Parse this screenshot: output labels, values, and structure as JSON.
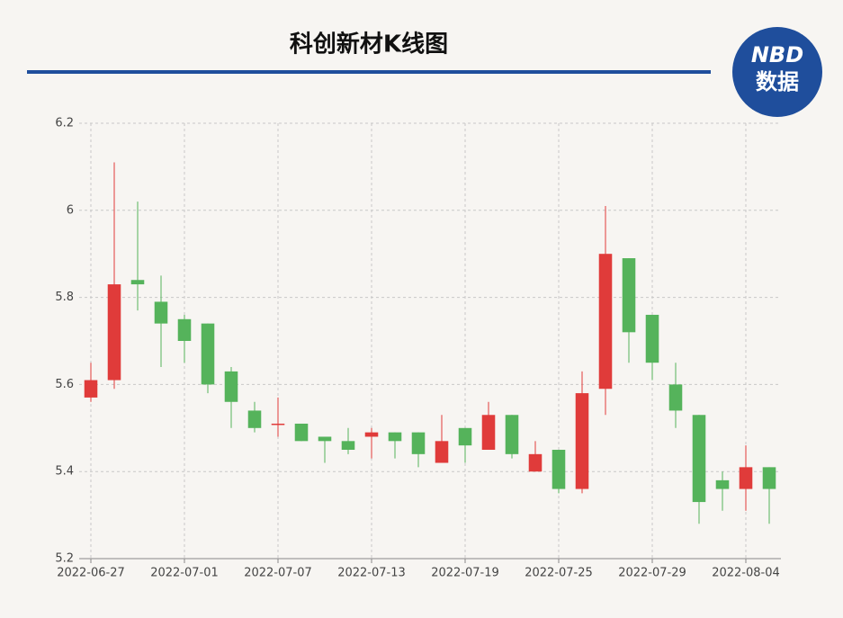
{
  "chart_data": {
    "type": "candlestick",
    "title": "科创新材K线图",
    "categories": [
      "2022-06-27",
      null,
      null,
      null,
      "2022-07-01",
      null,
      null,
      null,
      "2022-07-07",
      null,
      null,
      null,
      "2022-07-13",
      null,
      null,
      null,
      "2022-07-19",
      null,
      null,
      null,
      "2022-07-25",
      null,
      null,
      null,
      "2022-07-29",
      null,
      null,
      null,
      "2022-08-04",
      null
    ],
    "open": [
      5.57,
      5.61,
      5.84,
      5.79,
      5.75,
      5.74,
      5.63,
      5.54,
      5.51,
      5.51,
      5.48,
      5.47,
      5.48,
      5.49,
      5.49,
      5.42,
      5.5,
      5.45,
      5.53,
      5.4,
      5.45,
      5.36,
      5.59,
      5.89,
      5.76,
      5.6,
      5.53,
      5.38,
      5.36,
      5.41
    ],
    "high": [
      5.65,
      6.11,
      6.02,
      5.85,
      5.76,
      5.74,
      5.64,
      5.56,
      5.57,
      5.51,
      5.48,
      5.5,
      5.5,
      5.49,
      5.49,
      5.53,
      5.5,
      5.56,
      5.53,
      5.47,
      5.45,
      5.63,
      6.01,
      5.89,
      5.76,
      5.65,
      5.53,
      5.4,
      5.46,
      5.41
    ],
    "low": [
      5.56,
      5.59,
      5.77,
      5.64,
      5.65,
      5.58,
      5.5,
      5.49,
      5.48,
      5.47,
      5.42,
      5.44,
      5.43,
      5.43,
      5.41,
      5.42,
      5.42,
      5.45,
      5.43,
      5.4,
      5.35,
      5.35,
      5.53,
      5.65,
      5.61,
      5.5,
      5.28,
      5.31,
      5.31,
      5.28
    ],
    "close": [
      5.61,
      5.83,
      5.83,
      5.74,
      5.7,
      5.6,
      5.56,
      5.5,
      5.51,
      5.47,
      5.47,
      5.45,
      5.49,
      5.47,
      5.44,
      5.47,
      5.46,
      5.53,
      5.44,
      5.44,
      5.36,
      5.58,
      5.9,
      5.72,
      5.65,
      5.54,
      5.33,
      5.36,
      5.41,
      5.36
    ],
    "up_color": "#e03b3a",
    "down_color": "#55b35b",
    "ylim": [
      5.2,
      6.2
    ],
    "yticks": [
      5.2,
      5.4,
      5.6,
      5.8,
      6,
      6.2
    ],
    "grid": true
  },
  "logo": {
    "top": "NBD",
    "bottom": "数据"
  }
}
